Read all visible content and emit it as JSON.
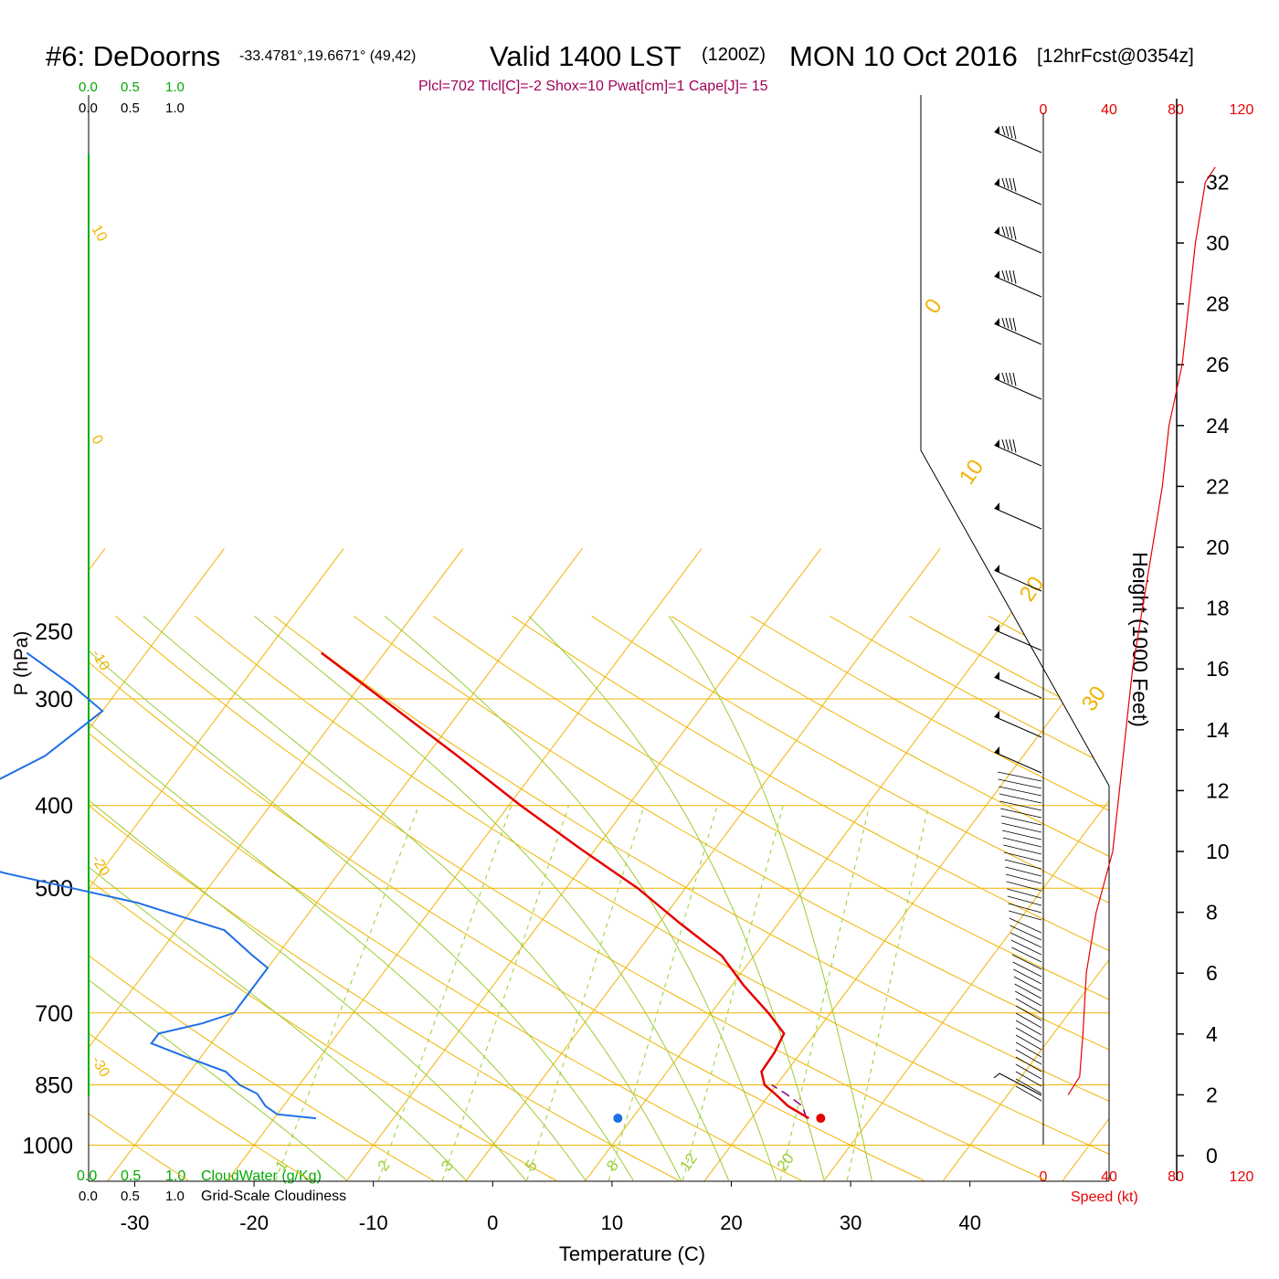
{
  "header": {
    "station": "#6: DeDoorns",
    "coords": "-33.4781°,19.6671° (49,42)",
    "valid": "Valid 1400 LST",
    "zulu": "(1200Z)",
    "date": "MON 10 Oct 2016",
    "fcst": "[12hrFcst@0354z]",
    "params": "Plcl=702 Tlcl[C]=-2 Shox=10 Pwat[cm]=1 Cape[J]= 15"
  },
  "colors": {
    "isobar": "#f0b400",
    "dry_adiabat": "#f0b400",
    "moist_adiabat": "#9acd32",
    "mixing_ratio": "#9acd32",
    "temperature": "#e60000",
    "dewpoint": "#1e6fe6",
    "parcel": "#8b008b",
    "cloudwater": "#00aa00",
    "params": "#a0005a",
    "speed": "#e60000"
  },
  "cloud_scale": {
    "cloudwater_ticks": [
      "0.0",
      "0.5",
      "1.0"
    ],
    "cloudiness_ticks": [
      "0.0",
      "0.5",
      "1.0"
    ],
    "cloudwater_label": "CloudWater (g/Kg)",
    "cloudiness_label": "Grid-Scale Cloudiness"
  },
  "speed_axis": {
    "ticks": [
      "0",
      "40",
      "80",
      "120"
    ],
    "label": "Speed (kt)"
  },
  "chart_data": {
    "type": "skew-T log-P sounding",
    "xlabel": "Temperature (C)",
    "ylabel": "P (hPa)",
    "y2label": "Height (1000 Feet)",
    "x_ticks": [
      -30,
      -20,
      -10,
      0,
      10,
      20,
      30,
      40
    ],
    "p_ticks": [
      250,
      300,
      400,
      500,
      700,
      850,
      1000
    ],
    "height_ticks": [
      0,
      2,
      4,
      6,
      8,
      10,
      12,
      14,
      16,
      18,
      20,
      22,
      24,
      26,
      28,
      30,
      32
    ],
    "isotherm_labels": [
      {
        "t": 10,
        "text": "10"
      },
      {
        "t": 0,
        "text": "0"
      },
      {
        "t": -10,
        "text": "-10"
      },
      {
        "t": -20,
        "text": "-20"
      },
      {
        "t": -30,
        "text": "-30"
      },
      {
        "t": 0,
        "text": "0"
      },
      {
        "t": 10,
        "text": "10"
      },
      {
        "t": 20,
        "text": "20"
      },
      {
        "t": 30,
        "text": "30"
      }
    ],
    "mixing_ratio_labels": [
      "1",
      "2",
      "3",
      "5",
      "8",
      "12",
      "20"
    ],
    "temperature": [
      {
        "p": 930,
        "t": 24.8
      },
      {
        "p": 900,
        "t": 22.3
      },
      {
        "p": 870,
        "t": 20.4
      },
      {
        "p": 850,
        "t": 19.0
      },
      {
        "p": 820,
        "t": 17.9
      },
      {
        "p": 780,
        "t": 17.8
      },
      {
        "p": 740,
        "t": 17.4
      },
      {
        "p": 700,
        "t": 14.8
      },
      {
        "p": 650,
        "t": 11.0
      },
      {
        "p": 600,
        "t": 7.3
      },
      {
        "p": 550,
        "t": 1.8
      },
      {
        "p": 500,
        "t": -4.0
      },
      {
        "p": 450,
        "t": -11.2
      },
      {
        "p": 400,
        "t": -19.0
      },
      {
        "p": 350,
        "t": -27.4
      },
      {
        "p": 300,
        "t": -37.3
      },
      {
        "p": 265,
        "t": -45.3
      }
    ],
    "dewpoint": [
      {
        "p": 930,
        "t": -16.5
      },
      {
        "p": 920,
        "t": -20.0
      },
      {
        "p": 900,
        "t": -21.5
      },
      {
        "p": 870,
        "t": -23.0
      },
      {
        "p": 850,
        "t": -25.0
      },
      {
        "p": 820,
        "t": -27.0
      },
      {
        "p": 790,
        "t": -31.0
      },
      {
        "p": 760,
        "t": -35.0
      },
      {
        "p": 740,
        "t": -35.0
      },
      {
        "p": 720,
        "t": -32.0
      },
      {
        "p": 700,
        "t": -30.0
      },
      {
        "p": 660,
        "t": -30.0
      },
      {
        "p": 620,
        "t": -30.0
      },
      {
        "p": 600,
        "t": -32.0
      },
      {
        "p": 560,
        "t": -36.0
      },
      {
        "p": 520,
        "t": -45.0
      },
      {
        "p": 480,
        "t": -58.0
      },
      {
        "p": 440,
        "t": -70.0
      },
      {
        "p": 400,
        "t": -67.0
      },
      {
        "p": 350,
        "t": -62.0
      },
      {
        "p": 310,
        "t": -60.0
      },
      {
        "p": 290,
        "t": -64.0
      },
      {
        "p": 265,
        "t": -70.0
      }
    ],
    "parcel": [
      {
        "p": 930,
        "t": 24.6
      },
      {
        "p": 900,
        "t": 23.5
      },
      {
        "p": 870,
        "t": 21.3
      },
      {
        "p": 850,
        "t": 19.6
      }
    ],
    "surface_temp_marker": {
      "p": 930,
      "t": 25.8
    },
    "surface_dew_marker": {
      "p": 930,
      "t": 8.8
    },
    "wind_speed_profile": [
      {
        "h": 2.0,
        "kt": 15
      },
      {
        "h": 2.6,
        "kt": 22
      },
      {
        "h": 4,
        "kt": 24
      },
      {
        "h": 6,
        "kt": 26
      },
      {
        "h": 8,
        "kt": 32
      },
      {
        "h": 10,
        "kt": 42
      },
      {
        "h": 12,
        "kt": 46
      },
      {
        "h": 14,
        "kt": 50
      },
      {
        "h": 16,
        "kt": 54
      },
      {
        "h": 18,
        "kt": 60
      },
      {
        "h": 20,
        "kt": 66
      },
      {
        "h": 22,
        "kt": 72
      },
      {
        "h": 24,
        "kt": 76
      },
      {
        "h": 26,
        "kt": 84
      },
      {
        "h": 28,
        "kt": 88
      },
      {
        "h": 30,
        "kt": 92
      },
      {
        "h": 32,
        "kt": 98
      },
      {
        "h": 32.5,
        "kt": 104
      }
    ]
  }
}
